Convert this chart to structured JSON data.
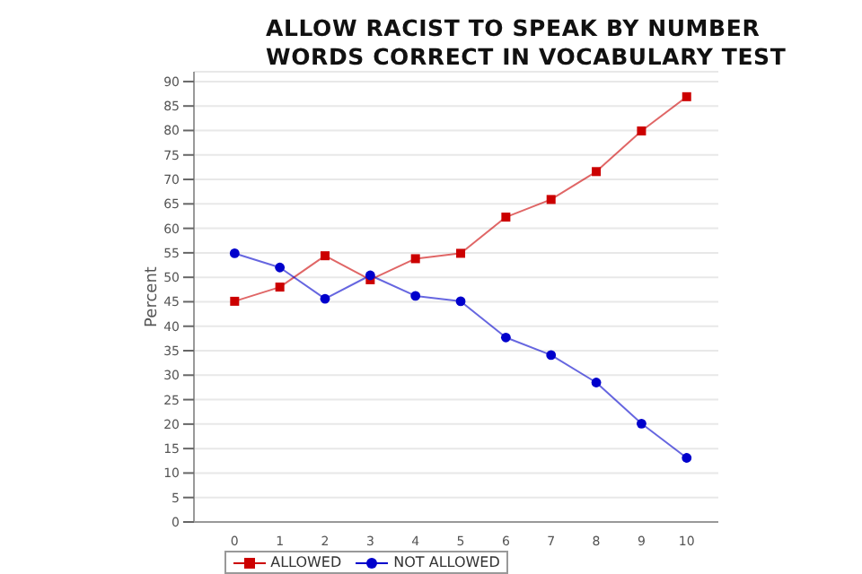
{
  "chart_data": {
    "type": "line",
    "title": "ALLOW RACIST TO SPEAK BY NUMBER WORDS CORRECT IN VOCABULARY TEST",
    "ylabel": "Percent",
    "categories": [
      "0",
      "1",
      "2",
      "3",
      "4",
      "5",
      "6",
      "7",
      "8",
      "9",
      "10"
    ],
    "series": [
      {
        "name": "ALLOWED",
        "color": "#cc0000",
        "marker": "square",
        "values": [
          45.1,
          48,
          54.4,
          49.5,
          53.8,
          54.9,
          62.3,
          65.9,
          71.6,
          79.9,
          86.9
        ]
      },
      {
        "name": "NOT ALLOWED",
        "color": "#0000cc",
        "marker": "circle",
        "values": [
          54.9,
          52,
          45.6,
          50.4,
          46.2,
          45.1,
          37.7,
          34.1,
          28.5,
          20.1,
          13.1
        ]
      }
    ],
    "ylim": [
      0,
      92
    ],
    "yticks": [
      0,
      5,
      10,
      15,
      20,
      25,
      30,
      35,
      40,
      45,
      50,
      55,
      60,
      65,
      70,
      75,
      80,
      85,
      90
    ],
    "grid": "y",
    "legend": "bottom"
  }
}
